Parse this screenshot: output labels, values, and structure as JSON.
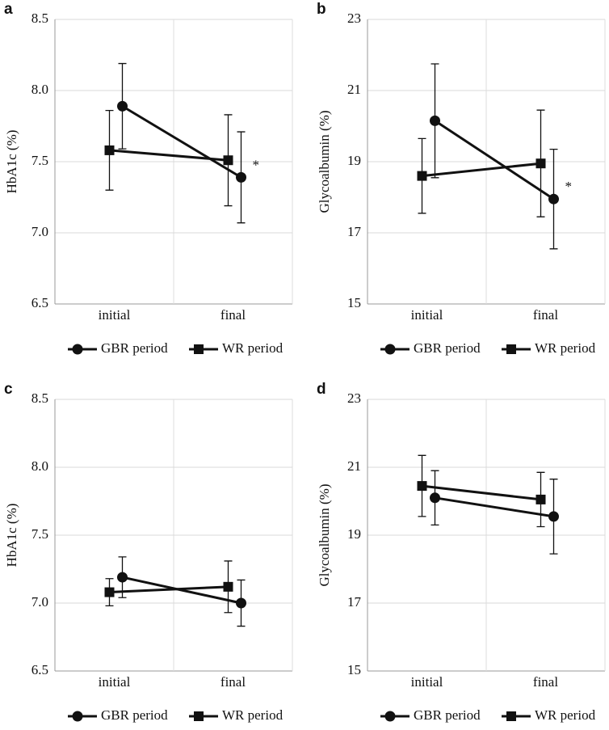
{
  "chart_data": [
    {
      "type": "line",
      "panel": "a",
      "ylabel": "HbA1c (%)",
      "categories": [
        "initial",
        "final"
      ],
      "ylim": [
        6.5,
        8.5
      ],
      "yticks": [
        6.5,
        {
          "value": 7,
          "label": "7.0"
        },
        7.5,
        {
          "value": 8,
          "label": "8.0"
        },
        8.5
      ],
      "grid": true,
      "series": [
        {
          "name": "GBR period",
          "color": "#111111",
          "marker": "circle",
          "values": [
            7.89,
            7.39
          ],
          "errors": [
            0.3,
            0.32
          ]
        },
        {
          "name": "WR period",
          "color": "#111111",
          "marker": "square",
          "values": [
            7.58,
            7.51
          ],
          "errors": [
            0.28,
            0.32
          ]
        }
      ],
      "annotation": "*"
    },
    {
      "type": "line",
      "panel": "b",
      "ylabel": "Glycoalbumin (%)",
      "categories": [
        "initial",
        "final"
      ],
      "ylim": [
        15,
        23
      ],
      "yticks": [
        15,
        17,
        19,
        21,
        23
      ],
      "grid": true,
      "series": [
        {
          "name": "GBR period",
          "color": "#111111",
          "marker": "circle",
          "values": [
            20.15,
            17.95
          ],
          "errors": [
            1.6,
            1.4
          ]
        },
        {
          "name": "WR period",
          "color": "#111111",
          "marker": "square",
          "values": [
            18.6,
            18.95
          ],
          "errors": [
            1.05,
            1.5
          ]
        }
      ],
      "annotation": "*"
    },
    {
      "type": "line",
      "panel": "c",
      "ylabel": "HbA1c (%)",
      "categories": [
        "initial",
        "final"
      ],
      "ylim": [
        6.5,
        8.5
      ],
      "yticks": [
        6.5,
        {
          "value": 7,
          "label": "7.0"
        },
        7.5,
        {
          "value": 8,
          "label": "8.0"
        },
        8.5
      ],
      "grid": true,
      "series": [
        {
          "name": "GBR period",
          "color": "#111111",
          "marker": "circle",
          "values": [
            7.19,
            7.0
          ],
          "errors": [
            0.15,
            0.17
          ]
        },
        {
          "name": "WR period",
          "color": "#111111",
          "marker": "square",
          "values": [
            7.08,
            7.12
          ],
          "errors": [
            0.1,
            0.19
          ]
        }
      ]
    },
    {
      "type": "line",
      "panel": "d",
      "ylabel": "Glycoalbumin (%)",
      "categories": [
        "initial",
        "final"
      ],
      "ylim": [
        15,
        23
      ],
      "yticks": [
        15,
        17,
        19,
        21,
        23
      ],
      "grid": true,
      "series": [
        {
          "name": "GBR period",
          "color": "#111111",
          "marker": "circle",
          "values": [
            20.1,
            19.55
          ],
          "errors": [
            0.8,
            1.1
          ]
        },
        {
          "name": "WR period",
          "color": "#111111",
          "marker": "square",
          "values": [
            20.45,
            20.05
          ],
          "errors": [
            0.9,
            0.8
          ]
        }
      ]
    }
  ]
}
